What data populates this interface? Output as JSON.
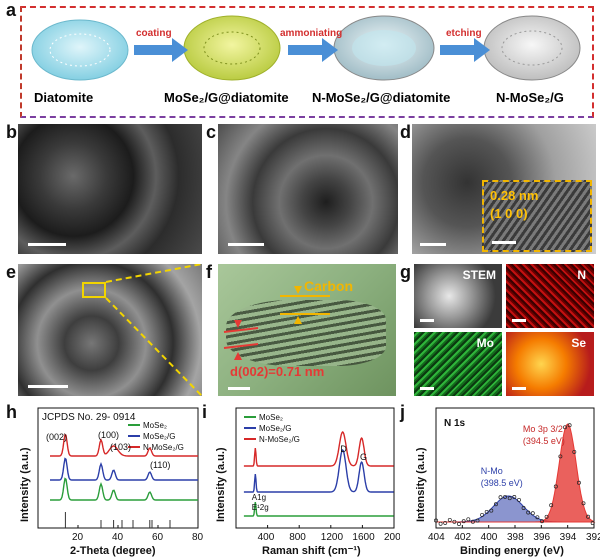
{
  "panels": {
    "a": {
      "label": "a",
      "steps": [
        "Diatomite",
        "MoSe₂/G@diatomite",
        "N-MoSe₂/G@diatomite",
        "N-MoSe₂/G"
      ],
      "arrows": [
        "coating",
        "ammoniating",
        "etching"
      ]
    },
    "b": {
      "label": "b"
    },
    "c": {
      "label": "c"
    },
    "d": {
      "label": "d",
      "lattice": "0.28 nm",
      "plane": "(1 0 0)"
    },
    "e": {
      "label": "e"
    },
    "f": {
      "label": "f",
      "carbon": "Carbon",
      "dspacing": "d(002)=0.71 nm"
    },
    "g": {
      "label": "g",
      "maps": [
        "STEM",
        "N",
        "Mo",
        "Se"
      ]
    },
    "h": {
      "label": "h"
    },
    "i": {
      "label": "i"
    },
    "j": {
      "label": "j"
    }
  },
  "chart_data": [
    {
      "type": "line",
      "panel": "h",
      "title": "JCPDS No. 29- 0914",
      "xlabel": "2-Theta (degree)",
      "ylabel": "Intensity (a.u.)",
      "xlim": [
        0,
        80
      ],
      "xticks": [
        20,
        40,
        60,
        80
      ],
      "series": [
        {
          "name": "MoSe₂",
          "color": "#2a9d3a"
        },
        {
          "name": "MoSe₂/G",
          "color": "#2b3ea8"
        },
        {
          "name": "N-MoSe₂/G",
          "color": "#d62828"
        }
      ],
      "annotations": [
        "(002)",
        "(100)",
        "(103)",
        "(110)"
      ],
      "peaks_deg": [
        13.7,
        31.5,
        37.8,
        55.9
      ]
    },
    {
      "type": "line",
      "panel": "i",
      "xlabel": "Raman shift (cm⁻¹)",
      "ylabel": "Intensity (a.u.)",
      "xlim": [
        0,
        2000
      ],
      "xticks": [
        400,
        800,
        1200,
        1600,
        2000
      ],
      "series": [
        {
          "name": "MoSe₂",
          "color": "#2a9d3a"
        },
        {
          "name": "MoSe₂/G",
          "color": "#2b3ea8"
        },
        {
          "name": "N-MoSe₂/G",
          "color": "#d62828"
        }
      ],
      "annotations": [
        "D",
        "G",
        "A1g",
        "E¹2g"
      ]
    },
    {
      "type": "area",
      "panel": "j",
      "title": "N 1s",
      "xlabel": "Binding energy (eV)",
      "ylabel": "Intensity (a.u.)",
      "xlim": [
        404,
        392
      ],
      "xticks": [
        404,
        402,
        400,
        398,
        396,
        394,
        392
      ],
      "peaks": [
        {
          "name": "N-Mo",
          "value_eV": 398.5,
          "label": "(398.5 eV)",
          "color": "#2b3ea8"
        },
        {
          "name": "Mo 3p 3/2",
          "value_eV": 394.5,
          "label": "(394.5 eV)",
          "color": "#e53935"
        }
      ]
    }
  ]
}
